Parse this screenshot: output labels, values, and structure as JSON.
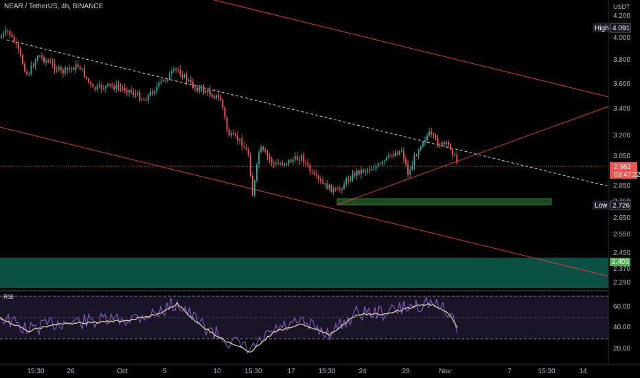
{
  "header": {
    "symbol_line": "NEAR / TetherUS, 4h, BINANCE"
  },
  "axis": {
    "unit": "USDT"
  },
  "colors": {
    "up": "#26a69a",
    "down": "#ef5350",
    "trend": "#e53935",
    "support_zone": "#0c5a4a",
    "small_zone": "#1e4a23",
    "rsi": "#7e57c2",
    "rsi_ma": "#e0e39a"
  },
  "price_labels": {
    "high_label": "High",
    "high_value": "4.091",
    "low_label": "Low",
    "low_value": "2.726",
    "current_price": "2.982",
    "countdown": "03:47:22",
    "zone_price": "2.403"
  },
  "rsi_panel": {
    "title": "RSI"
  },
  "chart_data": {
    "type": "candlestick",
    "y_axis_ticks": [
      "4.200",
      "4.000",
      "3.800",
      "3.600",
      "3.400",
      "3.200",
      "3.050",
      "2.850",
      "2.750",
      "2.650",
      "2.550",
      "2.450",
      "2.370",
      "2.290"
    ],
    "x_axis_ticks": [
      "15:30",
      "26",
      "Oct",
      "5",
      "10",
      "15:30",
      "17",
      "15:30",
      "24",
      "28",
      "Nov",
      "7",
      "15:30",
      "14"
    ],
    "rsi_ticks": [
      "60.00",
      "40.00",
      "20.00"
    ],
    "rsi_levels": [
      70,
      50,
      30
    ],
    "key_points": [
      {
        "label": "start",
        "price": 3.95
      },
      {
        "label": "high",
        "price": 4.091
      },
      {
        "label": "low",
        "price": 2.726
      },
      {
        "label": "last",
        "price": 2.982
      }
    ],
    "zones": [
      {
        "name": "support",
        "from": 2.29,
        "to": 2.403
      },
      {
        "name": "demand",
        "from": 2.726,
        "to": 2.74
      }
    ]
  }
}
